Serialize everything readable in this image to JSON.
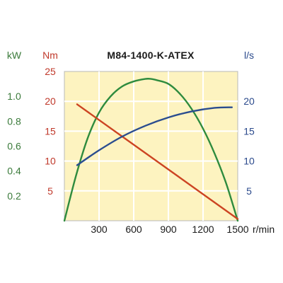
{
  "chart_data": {
    "type": "line",
    "title": "M84-1400-K-ATEX",
    "xlabel": "r/min",
    "xlim": [
      0,
      1500
    ],
    "x_ticks": [
      300,
      600,
      900,
      1200,
      1500
    ],
    "grid": true,
    "background": "#fdf3c0",
    "axes": {
      "kw": {
        "label": "kW",
        "range": [
          0,
          1.2
        ],
        "ticks": [
          "0.2",
          "0.4",
          "0.6",
          "0.8",
          "1.0"
        ],
        "tick_values": [
          0.2,
          0.4,
          0.6,
          0.8,
          1.0
        ],
        "color": "#3a7a3a"
      },
      "nm": {
        "label": "Nm",
        "range": [
          0,
          25
        ],
        "ticks": [
          "5",
          "10",
          "15",
          "20",
          "25"
        ],
        "tick_values": [
          5,
          10,
          15,
          20,
          25
        ],
        "color": "#c0392b"
      },
      "l_s": {
        "label": "l/s",
        "range": [
          0,
          25
        ],
        "ticks": [
          "5",
          "10",
          "15",
          "20"
        ],
        "tick_values": [
          5,
          10,
          15,
          20
        ],
        "color": "#2b4a8c"
      }
    },
    "series": [
      {
        "axis": "kw",
        "color": "#2e8b3e",
        "x": [
          0,
          100,
          200,
          300,
          400,
          500,
          600,
          700,
          750,
          800,
          900,
          1000,
          1100,
          1200,
          1300,
          1400,
          1500
        ],
        "values": [
          0.0,
          0.36,
          0.66,
          0.87,
          1.0,
          1.08,
          1.12,
          1.14,
          1.14,
          1.13,
          1.1,
          1.02,
          0.9,
          0.74,
          0.54,
          0.3,
          0.0
        ]
      },
      {
        "axis": "nm",
        "color": "#cc4422",
        "x": [
          110,
          1500
        ],
        "values": [
          19.5,
          0.3
        ]
      },
      {
        "axis": "l_s",
        "color": "#2a4d8f",
        "x": [
          110,
          300,
          500,
          700,
          900,
          1100,
          1300,
          1450
        ],
        "values": [
          9.3,
          11.8,
          14.1,
          15.9,
          17.3,
          18.3,
          18.9,
          19.0
        ]
      }
    ]
  }
}
